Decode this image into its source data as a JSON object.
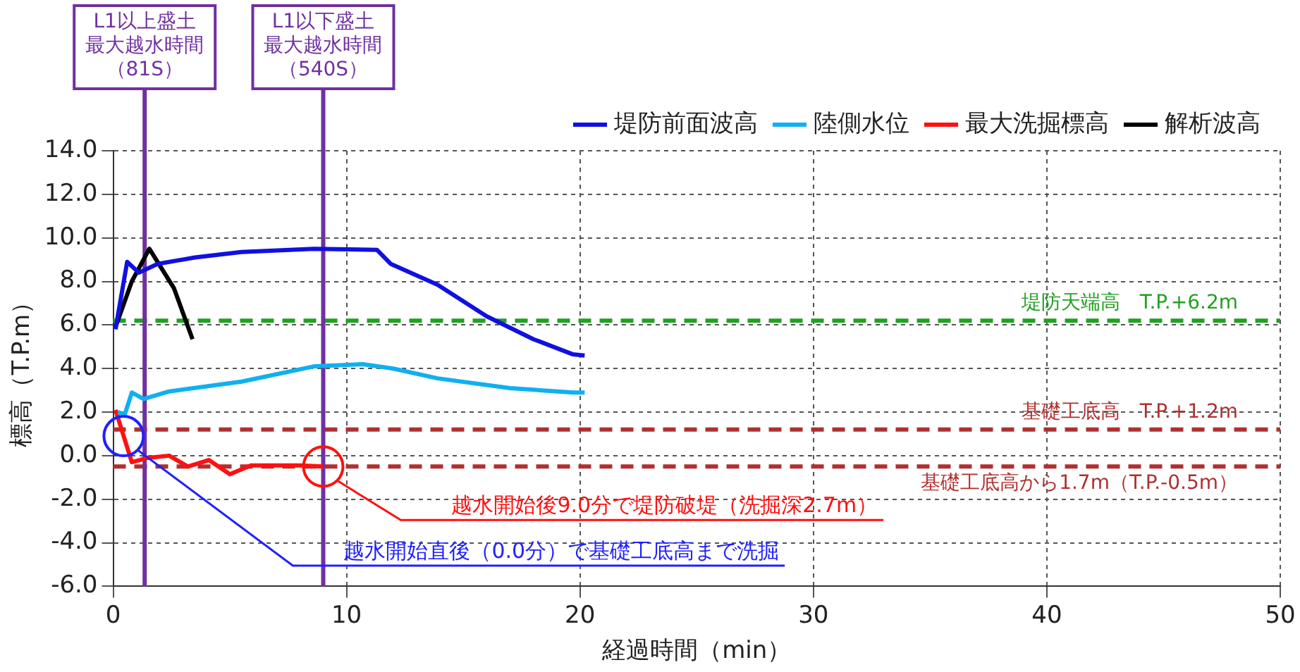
{
  "chart_data": {
    "type": "line",
    "xlabel": "経過時間（min）",
    "ylabel": "標高（T.P.m）",
    "xlim": [
      0,
      50
    ],
    "xticks": [
      0,
      10,
      20,
      30,
      40,
      50
    ],
    "ylim": [
      -6,
      14
    ],
    "yticks": [
      {
        "value": -6,
        "label": "-6.0"
      },
      {
        "value": -4,
        "label": "-4.0"
      },
      {
        "value": -2,
        "label": "-2.0"
      },
      {
        "value": 0,
        "label": "0.0"
      },
      {
        "value": 2,
        "label": "2.0"
      },
      {
        "value": 4,
        "label": "4.0"
      },
      {
        "value": 6,
        "label": "6.0"
      },
      {
        "value": 8,
        "label": "8.0"
      },
      {
        "value": 10,
        "label": "10.0"
      },
      {
        "value": 12,
        "label": "12.0"
      },
      {
        "value": 14,
        "label": "14.0"
      }
    ],
    "grid": true,
    "legend": "top right",
    "line_style": "solid",
    "marker": "none",
    "series": [
      {
        "name": "堤防前面波高",
        "color": "#1010e0",
        "x": [
          0.1,
          0.6,
          1.1,
          1.9,
          3.5,
          5.5,
          8.6,
          11.3,
          11.9,
          13.9,
          16.0,
          18.0,
          19.7,
          20.2
        ],
        "values": [
          5.8,
          8.9,
          8.4,
          8.8,
          9.1,
          9.35,
          9.5,
          9.45,
          8.8,
          7.85,
          6.4,
          5.35,
          4.65,
          4.6
        ]
      },
      {
        "name": "陸側水位",
        "color": "#10b0f0",
        "x": [
          0.2,
          0.5,
          0.8,
          1.3,
          2.4,
          5.5,
          8.6,
          10.7,
          12.0,
          13.9,
          17.0,
          19.7,
          20.2
        ],
        "values": [
          2.0,
          1.9,
          2.9,
          2.6,
          2.95,
          3.4,
          4.1,
          4.2,
          4.0,
          3.55,
          3.1,
          2.9,
          2.9
        ]
      },
      {
        "name": "最大洗掘標高",
        "color": "#ff1010",
        "x": [
          0.1,
          0.45,
          0.8,
          1.5,
          2.4,
          3.2,
          4.1,
          5.0,
          5.9,
          8.0,
          9.0
        ],
        "values": [
          2.1,
          0.9,
          -0.3,
          -0.1,
          0.0,
          -0.5,
          -0.2,
          -0.85,
          -0.45,
          -0.45,
          -0.5
        ]
      },
      {
        "name": "解析波高",
        "color": "#000000",
        "x": [
          0.1,
          0.8,
          1.55,
          2.6,
          3.4
        ],
        "values": [
          5.9,
          8.0,
          9.5,
          7.7,
          5.35
        ]
      }
    ],
    "ref_lines": [
      {
        "axis": "y",
        "value": 6.2,
        "label": "堤防天端高　T.P.+6.2m",
        "color": "#22a022",
        "line_style": "dashed"
      },
      {
        "axis": "y",
        "value": 1.2,
        "label": "基礎工底高　T.P.+1.2m",
        "color": "#b03030",
        "line_style": "dashed"
      },
      {
        "axis": "y",
        "value": -0.5,
        "label": "基礎工底高から1.7m（T.P.-0.5m）",
        "color": "#b03030",
        "line_style": "dashed"
      },
      {
        "axis": "x",
        "value": 1.35,
        "label": "L1以上盛土最大越水時間（81S）",
        "color": "#7030a0",
        "line_style": "solid"
      },
      {
        "axis": "x",
        "value": 9.0,
        "label": "L1以下盛土最大越水時間（540S）",
        "color": "#7030a0",
        "line_style": "solid"
      }
    ],
    "annotations": [
      "越水開始後9.0分で堤防破堤（洗掘深2.7m）",
      "越水開始直後（0.0分）で基礎工底高まで洗掘"
    ]
  }
}
